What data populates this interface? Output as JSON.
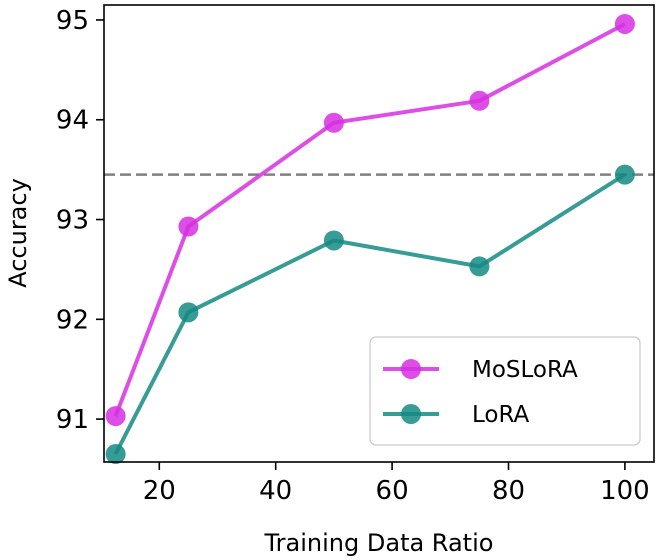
{
  "chart_data": {
    "type": "line",
    "title": "",
    "xlabel": "Training Data Ratio",
    "ylabel": "Accuracy",
    "xlim": [
      10.5,
      105
    ],
    "ylim": [
      90.57,
      95.15
    ],
    "xticks": [
      20,
      40,
      60,
      80,
      100
    ],
    "yticks": [
      91,
      92,
      93,
      94,
      95
    ],
    "x": [
      12.5,
      25,
      50,
      75,
      100
    ],
    "series": [
      {
        "name": "MoSLoRA",
        "color": "#d62fe0",
        "values": [
          91.03,
          92.93,
          93.97,
          94.19,
          94.96
        ]
      },
      {
        "name": "LoRA",
        "color": "#148a84",
        "values": [
          90.65,
          92.07,
          92.79,
          92.53,
          93.45
        ]
      }
    ],
    "reference_line": {
      "y": 93.45,
      "color": "#808080",
      "style": "dashed"
    },
    "legend": {
      "position": "lower-right",
      "entries": [
        "MoSLoRA",
        "LoRA"
      ]
    },
    "grid": false
  }
}
